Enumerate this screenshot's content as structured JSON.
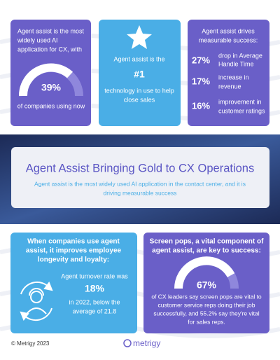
{
  "top_cards": [
    {
      "text_lines": [
        "Agent assist is the most",
        "widely used AI",
        "application for CX, with"
      ],
      "stat": "39%",
      "caption": "of companies using now"
    },
    {
      "intro": "Agent assist is the",
      "stat": "#1",
      "caption_lines": [
        "technology in use to help",
        "close sales"
      ]
    },
    {
      "heading_lines": [
        "Agent assist drives",
        "measurable success:"
      ],
      "stats": [
        {
          "value": "27%",
          "label_lines": [
            "drop in Average",
            "Handle Time"
          ]
        },
        {
          "value": "17%",
          "label_lines": [
            "increase in",
            "revenue"
          ]
        },
        {
          "value": "16%",
          "label_lines": [
            "improvement in",
            "customer ratings"
          ]
        }
      ]
    }
  ],
  "banner": {
    "title": "Agent Assist Bringing Gold to CX Operations",
    "subtitle_lines": [
      "Agent assist is the most widely used AI application in the contact center, and it is",
      "driving measurable success"
    ]
  },
  "bottom_cards": [
    {
      "heading_lines": [
        "When companies use agent",
        "assist, it improves employee",
        "longevity and loyalty:"
      ],
      "intro": "Agent turnover rate was",
      "stat": "18%",
      "caption_lines": [
        "in 2022, below the",
        "average of 21.8"
      ]
    },
    {
      "heading_lines": [
        "Screen pops, a vital component of",
        "agent assist, are key to success:"
      ],
      "stat": "67%",
      "caption_lines": [
        "of CX leaders say screen pops are vital to",
        "customer service reps doing their job",
        "successfully, and 55.2% say they're vital",
        "for sales reps."
      ]
    }
  ],
  "footer": {
    "copyright": "© Metrigy 2023",
    "logo": "metrigy"
  }
}
